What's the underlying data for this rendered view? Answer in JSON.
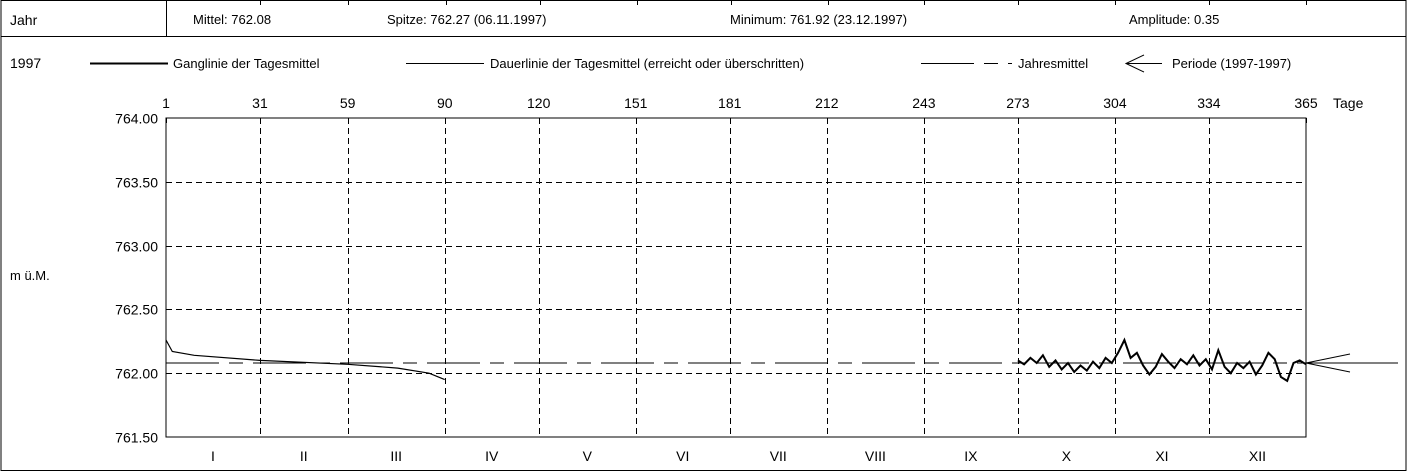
{
  "header": {
    "label": "Jahr",
    "mittel": "Mittel: 762.08",
    "spitze": "Spitze: 762.27 (06.11.1997)",
    "minimum": "Minimum: 761.92 (23.12.1997)",
    "amplitude": "Amplitude: 0.35"
  },
  "legend": {
    "year": "1997",
    "ganglinie": "Ganglinie der Tagesmittel",
    "dauerlinie": "Dauerlinie der Tagesmittel (erreicht oder überschritten)",
    "jahresmittel": "Jahresmittel",
    "periode": "Periode (1997-1997)"
  },
  "chart_data": {
    "type": "line",
    "xlabel": "Tage",
    "ylabel": "m ü.M.",
    "xlim": [
      1,
      365
    ],
    "ylim": [
      761.5,
      764.0
    ],
    "x_ticks": [
      1,
      31,
      59,
      90,
      120,
      151,
      181,
      212,
      243,
      273,
      304,
      334,
      365
    ],
    "y_ticks": [
      "764.00",
      "763.50",
      "763.00",
      "762.50",
      "762.00",
      "761.50"
    ],
    "months": [
      "I",
      "II",
      "III",
      "IV",
      "V",
      "VI",
      "VII",
      "VIII",
      "IX",
      "X",
      "XI",
      "XII"
    ],
    "jahresmittel": 762.08,
    "series": [
      {
        "name": "Ganglinie der Tagesmittel",
        "x": [
          273,
          275,
          277,
          279,
          281,
          283,
          285,
          287,
          289,
          291,
          293,
          295,
          297,
          299,
          301,
          303,
          305,
          307,
          309,
          311,
          313,
          315,
          317,
          319,
          321,
          323,
          325,
          327,
          329,
          331,
          333,
          335,
          337,
          339,
          341,
          343,
          345,
          347,
          349,
          351,
          353,
          355,
          357,
          359,
          361,
          363,
          365
        ],
        "y": [
          762.1,
          762.07,
          762.12,
          762.08,
          762.14,
          762.05,
          762.1,
          762.03,
          762.08,
          762.01,
          762.06,
          762.02,
          762.09,
          762.04,
          762.12,
          762.08,
          762.16,
          762.26,
          762.12,
          762.16,
          762.06,
          761.99,
          762.05,
          762.15,
          762.09,
          762.04,
          762.11,
          762.07,
          762.14,
          762.06,
          762.11,
          762.03,
          762.18,
          762.05,
          762.0,
          762.08,
          762.04,
          762.09,
          761.99,
          762.06,
          762.16,
          762.11,
          761.97,
          761.94,
          762.08,
          762.1,
          762.07
        ]
      },
      {
        "name": "Dauerlinie der Tagesmittel (erreicht oder überschritten)",
        "x": [
          1,
          3,
          10,
          31,
          59,
          75,
          85,
          90
        ],
        "y": [
          762.26,
          762.17,
          762.14,
          762.1,
          762.07,
          762.04,
          762.0,
          761.95
        ]
      }
    ],
    "grid": true
  }
}
